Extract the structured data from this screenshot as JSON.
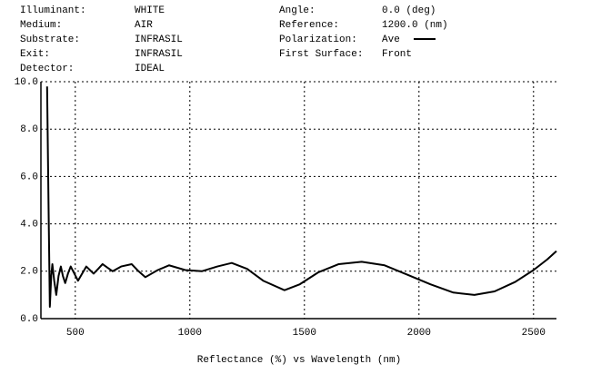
{
  "chart_data": {
    "type": "line",
    "info_left": [
      {
        "label": "Illuminant:",
        "value": "WHITE"
      },
      {
        "label": "Medium:",
        "value": "AIR"
      },
      {
        "label": "Substrate:",
        "value": "INFRASIL"
      },
      {
        "label": "Exit:",
        "value": "INFRASIL"
      },
      {
        "label": "Detector:",
        "value": "IDEAL"
      }
    ],
    "info_right": [
      {
        "label": "Angle:",
        "value": "0.0 (deg)"
      },
      {
        "label": "Reference:",
        "value": "1200.0 (nm)"
      },
      {
        "label": "Polarization:"
      },
      {
        "label": "First Surface:",
        "value": "Front"
      }
    ],
    "x_title": "Reflectance (%)  vs  Wavelength (nm)",
    "xlim": [
      350,
      2600
    ],
    "xticks": [
      500,
      1000,
      1500,
      2000,
      2500
    ],
    "ylim": [
      0,
      10
    ],
    "yticks": [
      {
        "value": 0,
        "label": "0.0"
      },
      {
        "value": 2,
        "label": "2.0"
      },
      {
        "value": 4,
        "label": "4.0"
      },
      {
        "value": 6,
        "label": "6.0"
      },
      {
        "value": 8,
        "label": "8.0"
      },
      {
        "value": 10,
        "label": "10.0"
      }
    ],
    "grid": true,
    "x": [
      377,
      383,
      389,
      395,
      400,
      408,
      417,
      427,
      437,
      446,
      456,
      468,
      480,
      496,
      512,
      530,
      548,
      564,
      580,
      600,
      619,
      641,
      663,
      700,
      746,
      776,
      806,
      860,
      909,
      980,
      1052,
      1120,
      1183,
      1250,
      1320,
      1413,
      1480,
      1560,
      1650,
      1750,
      1850,
      1950,
      2050,
      2150,
      2242,
      2330,
      2420,
      2500,
      2560,
      2600
    ],
    "series": [
      {
        "name": "Ave",
        "color": "#000000",
        "values": [
          9.8,
          5,
          0.5,
          1.8,
          2.3,
          1.6,
          1.0,
          1.8,
          2.2,
          1.8,
          1.5,
          1.9,
          2.2,
          1.9,
          1.6,
          1.9,
          2.2,
          2.05,
          1.9,
          2.1,
          2.3,
          2.15,
          2.0,
          2.2,
          2.3,
          2.0,
          1.75,
          2.05,
          2.25,
          2.05,
          2.0,
          2.2,
          2.35,
          2.1,
          1.6,
          1.2,
          1.45,
          1.95,
          2.3,
          2.4,
          2.25,
          1.85,
          1.45,
          1.1,
          1.0,
          1.15,
          1.55,
          2.05,
          2.5,
          2.85
        ]
      }
    ]
  }
}
